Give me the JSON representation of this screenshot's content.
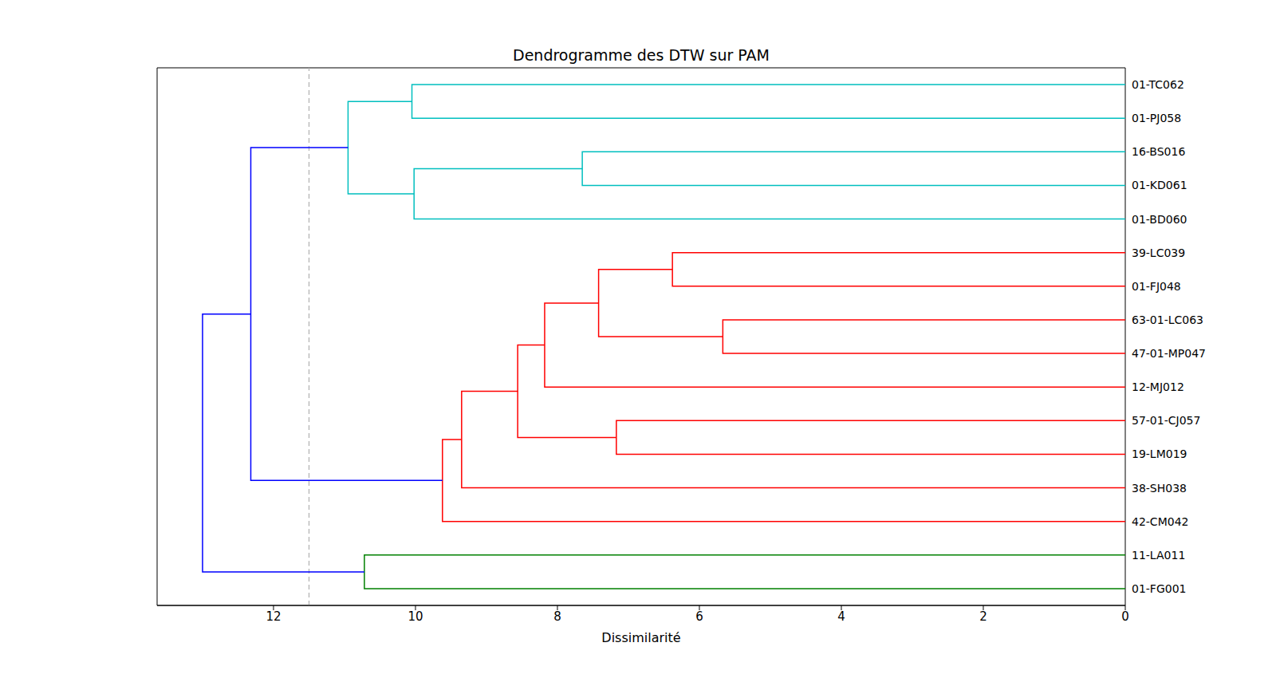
{
  "chart_data": {
    "type": "dendrogram",
    "title": "Dendrogramme des DTW sur PAM",
    "x_label": "Dissimilarité",
    "labels": [
      "01-TC062",
      "01-PJ058",
      "16-BS016",
      "01-KD061",
      "01-BD060",
      "39-LC039",
      "01-FJ048",
      "63-01-LC063",
      "47-01-MP047",
      "12-MJ012",
      "57-01-CJ057",
      "19-LM019",
      "38-SH038",
      "42-CM042",
      "11-LA011",
      "01-FG001"
    ],
    "merges": [
      {
        "left": 0,
        "right": 1,
        "height": 10.05,
        "color": "#00bfbf"
      },
      {
        "left": 2,
        "right": 3,
        "height": 7.65,
        "color": "#00bfbf"
      },
      {
        "left": 17,
        "right": 4,
        "height": 10.02,
        "color": "#00bfbf"
      },
      {
        "left": 16,
        "right": 18,
        "height": 10.95,
        "color": "#00bfbf"
      },
      {
        "left": 5,
        "right": 6,
        "height": 6.38,
        "color": "#ff0000"
      },
      {
        "left": 7,
        "right": 8,
        "height": 5.67,
        "color": "#ff0000"
      },
      {
        "left": 20,
        "right": 21,
        "height": 7.42,
        "color": "#ff0000"
      },
      {
        "left": 22,
        "right": 9,
        "height": 8.18,
        "color": "#ff0000"
      },
      {
        "left": 10,
        "right": 11,
        "height": 7.17,
        "color": "#ff0000"
      },
      {
        "left": 23,
        "right": 24,
        "height": 8.56,
        "color": "#ff0000"
      },
      {
        "left": 25,
        "right": 12,
        "height": 9.35,
        "color": "#ff0000"
      },
      {
        "left": 26,
        "right": 13,
        "height": 9.62,
        "color": "#ff0000"
      },
      {
        "left": 14,
        "right": 15,
        "height": 10.72,
        "color": "#008000"
      },
      {
        "left": 19,
        "right": 27,
        "height": 12.32,
        "color": "#0000ff"
      },
      {
        "left": 29,
        "right": 28,
        "height": 13.0,
        "color": "#0000ff"
      }
    ],
    "threshold": 11.5,
    "xlim": [
      0,
      13.64
    ],
    "xticks": [
      0,
      2,
      4,
      6,
      8,
      10,
      12
    ],
    "tick_labels": "x"
  }
}
